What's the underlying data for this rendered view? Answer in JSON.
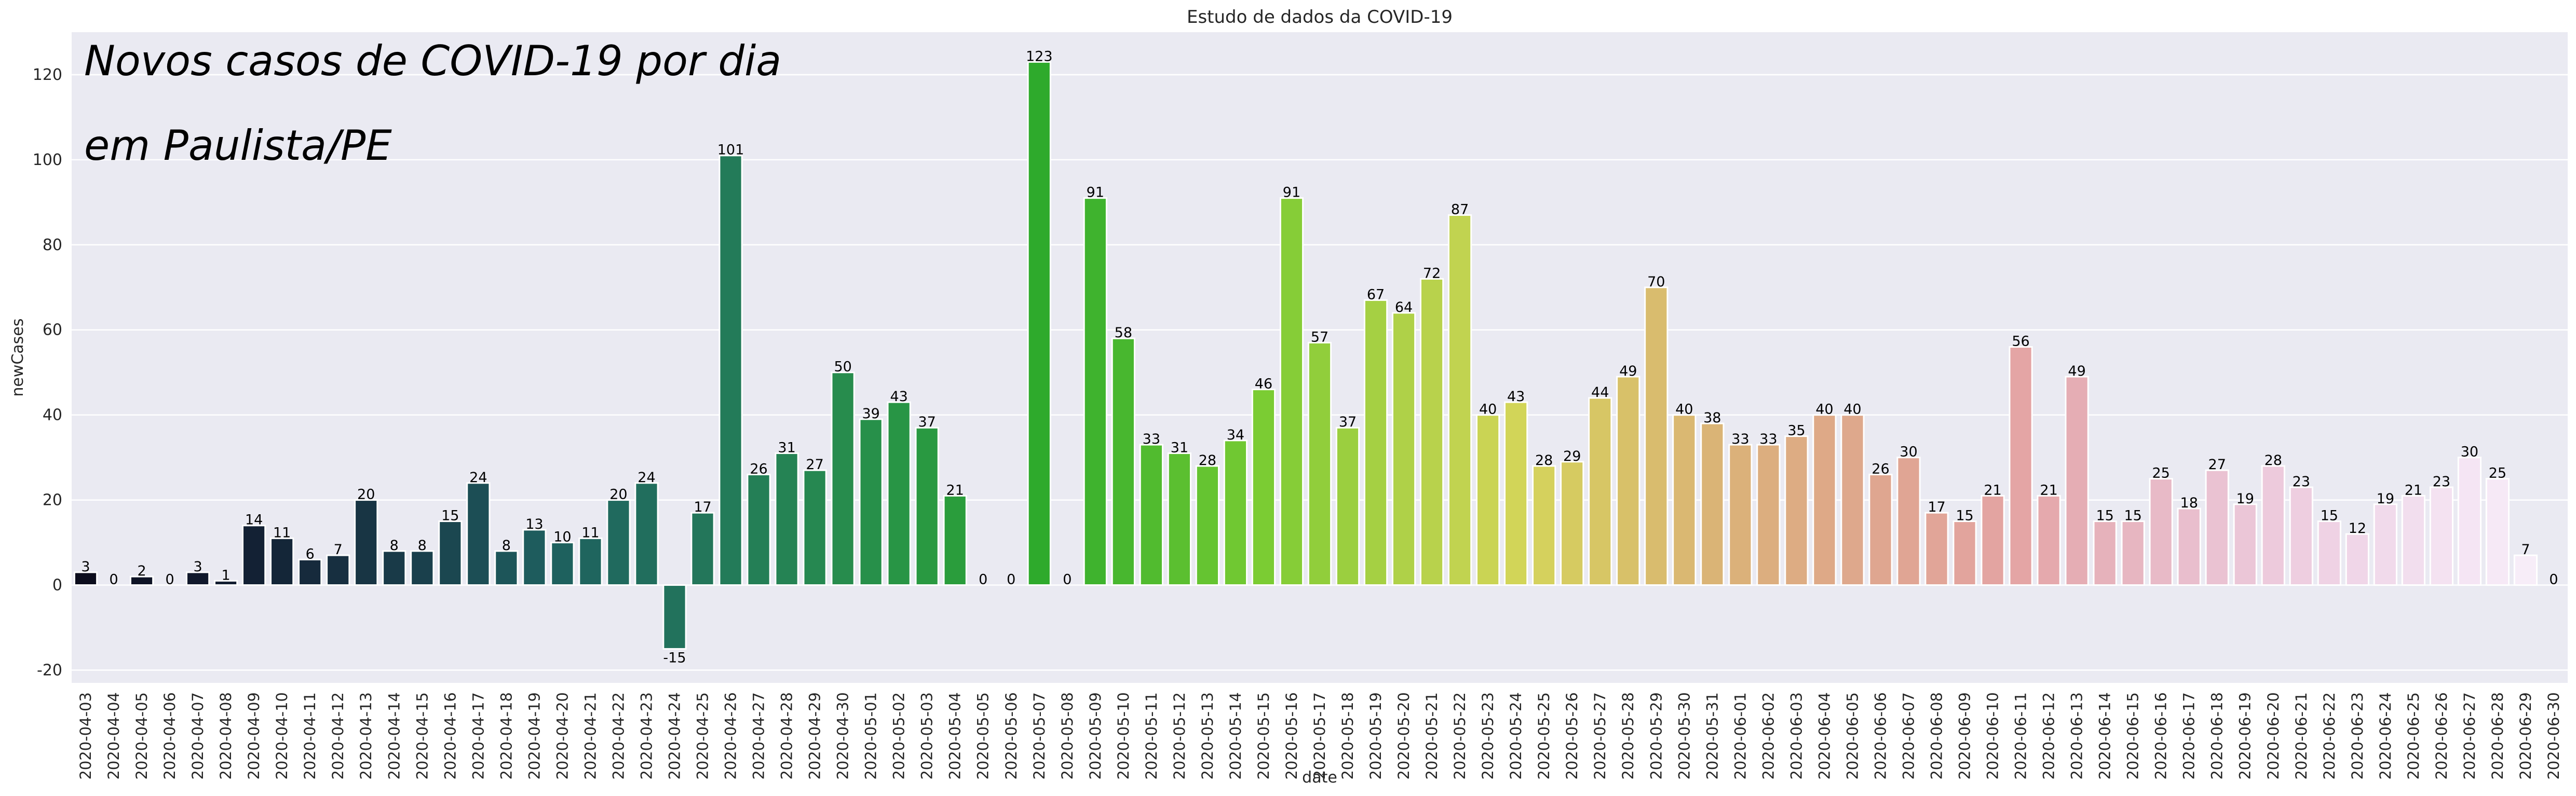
{
  "chart_data": {
    "type": "bar",
    "title": "Estudo de dados da COVID-19",
    "annotation_lines": [
      "Novos casos de COVID-19 por dia",
      "em Paulista/PE"
    ],
    "xlabel": "date",
    "ylabel": "newCases",
    "ylim": [
      -23,
      130
    ],
    "yticks": [
      -20,
      0,
      20,
      40,
      60,
      80,
      100,
      120
    ],
    "grid": true,
    "legend": "none",
    "categories": [
      "2020-04-03",
      "2020-04-04",
      "2020-04-05",
      "2020-04-06",
      "2020-04-07",
      "2020-04-08",
      "2020-04-09",
      "2020-04-10",
      "2020-04-11",
      "2020-04-12",
      "2020-04-13",
      "2020-04-14",
      "2020-04-15",
      "2020-04-16",
      "2020-04-17",
      "2020-04-18",
      "2020-04-19",
      "2020-04-20",
      "2020-04-21",
      "2020-04-22",
      "2020-04-23",
      "2020-04-24",
      "2020-04-25",
      "2020-04-26",
      "2020-04-27",
      "2020-04-28",
      "2020-04-29",
      "2020-04-30",
      "2020-05-01",
      "2020-05-02",
      "2020-05-03",
      "2020-05-04",
      "2020-05-05",
      "2020-05-06",
      "2020-05-07",
      "2020-05-08",
      "2020-05-09",
      "2020-05-10",
      "2020-05-11",
      "2020-05-12",
      "2020-05-13",
      "2020-05-14",
      "2020-05-15",
      "2020-05-16",
      "2020-05-17",
      "2020-05-18",
      "2020-05-19",
      "2020-05-20",
      "2020-05-21",
      "2020-05-22",
      "2020-05-23",
      "2020-05-24",
      "2020-05-25",
      "2020-05-26",
      "2020-05-27",
      "2020-05-28",
      "2020-05-29",
      "2020-05-30",
      "2020-05-31",
      "2020-06-01",
      "2020-06-02",
      "2020-06-03",
      "2020-06-04",
      "2020-06-05",
      "2020-06-06",
      "2020-06-07",
      "2020-06-08",
      "2020-06-09",
      "2020-06-10",
      "2020-06-11",
      "2020-06-12",
      "2020-06-13",
      "2020-06-14",
      "2020-06-15",
      "2020-06-16",
      "2020-06-17",
      "2020-06-18",
      "2020-06-19",
      "2020-06-20",
      "2020-06-21",
      "2020-06-22",
      "2020-06-23",
      "2020-06-24",
      "2020-06-25",
      "2020-06-26",
      "2020-06-27",
      "2020-06-28",
      "2020-06-29",
      "2020-06-30"
    ],
    "values": [
      3,
      0,
      2,
      0,
      3,
      1,
      14,
      11,
      6,
      7,
      20,
      8,
      8,
      15,
      24,
      8,
      13,
      10,
      11,
      20,
      24,
      -15,
      17,
      101,
      26,
      31,
      27,
      50,
      39,
      43,
      37,
      21,
      0,
      0,
      123,
      0,
      91,
      58,
      33,
      31,
      28,
      34,
      46,
      91,
      57,
      37,
      67,
      64,
      72,
      87,
      40,
      43,
      28,
      29,
      44,
      49,
      70,
      40,
      38,
      33,
      33,
      35,
      40,
      40,
      26,
      30,
      17,
      15,
      21,
      56,
      21,
      49,
      15,
      15,
      25,
      18,
      27,
      19,
      28,
      23,
      15,
      12,
      19,
      21,
      23,
      30,
      25,
      7,
      0
    ],
    "palette": "cubehelix (dark to light)",
    "colors": {
      "background": "#eaeaf2",
      "grid": "#ffffff",
      "bar_edge": "#ffffff",
      "text": "#262626"
    }
  }
}
